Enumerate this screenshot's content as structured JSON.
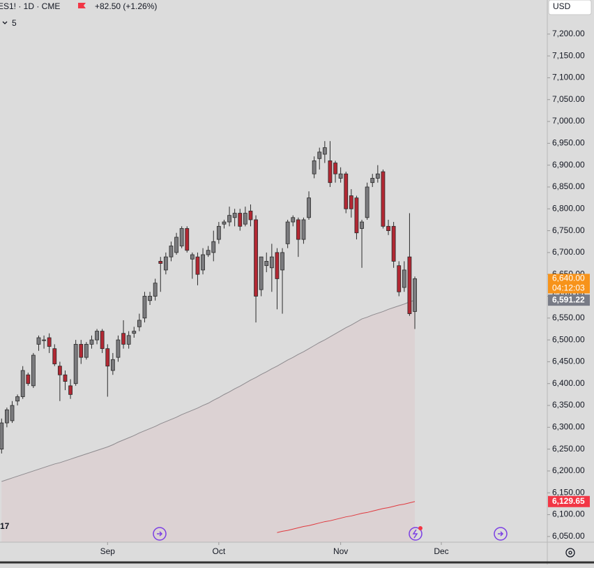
{
  "header": {
    "symbol": "ES1! · 1D · CME",
    "change": "+82.50 (+1.26%)",
    "indicator_count": "5",
    "currency": "USD"
  },
  "chart_data": {
    "type": "candlestick",
    "open": [
      6250,
      6310,
      6315,
      6360,
      6370,
      6420,
      6395,
      6490,
      6500,
      6505,
      6480,
      6440,
      6420,
      6395,
      6400,
      6490,
      6460,
      6490,
      6500,
      6520,
      6480,
      6430,
      6460,
      6515,
      6490,
      6515,
      6530,
      6550,
      6590,
      6600,
      6680,
      6660,
      6690,
      6700,
      6715,
      6755,
      6685,
      6690,
      6660,
      6695,
      6700,
      6730,
      6765,
      6770,
      6780,
      6790,
      6765,
      6795,
      6775,
      6615,
      6670,
      6665,
      6700,
      6660,
      6720,
      6770,
      6775,
      6730,
      6780,
      6880,
      6915,
      6925,
      6910,
      6905,
      6870,
      6880,
      6830,
      6825,
      6755,
      6780,
      6860,
      6870,
      6885,
      6760,
      6760,
      6670,
      6620,
      6690,
      6565
    ],
    "high": [
      6320,
      6345,
      6360,
      6375,
      6440,
      6425,
      6470,
      6510,
      6510,
      6515,
      6490,
      6450,
      6430,
      6410,
      6500,
      6500,
      6495,
      6510,
      6525,
      6525,
      6490,
      6470,
      6510,
      6545,
      6520,
      6530,
      6560,
      6610,
      6610,
      6640,
      6690,
      6700,
      6725,
      6745,
      6760,
      6760,
      6700,
      6700,
      6710,
      6715,
      6750,
      6770,
      6775,
      6805,
      6800,
      6800,
      6805,
      6810,
      6785,
      6690,
      6700,
      6720,
      6710,
      6710,
      6775,
      6785,
      6780,
      6780,
      6840,
      6920,
      6940,
      6955,
      6955,
      6910,
      6895,
      6885,
      6845,
      6830,
      6775,
      6860,
      6880,
      6900,
      6890,
      6775,
      6770,
      6680,
      6680,
      6790,
      6645
    ],
    "low": [
      6240,
      6300,
      6310,
      6350,
      6365,
      6395,
      6390,
      6475,
      6480,
      6470,
      6440,
      6360,
      6385,
      6365,
      6395,
      6445,
      6455,
      6480,
      6490,
      6470,
      6370,
      6420,
      6450,
      6480,
      6480,
      6505,
      6520,
      6540,
      6580,
      6590,
      6610,
      6650,
      6680,
      6695,
      6710,
      6700,
      6640,
      6625,
      6650,
      6690,
      6680,
      6720,
      6755,
      6760,
      6760,
      6750,
      6760,
      6760,
      6540,
      6600,
      6655,
      6610,
      6570,
      6560,
      6710,
      6760,
      6690,
      6720,
      6775,
      6870,
      6890,
      6905,
      6850,
      6860,
      6860,
      6790,
      6780,
      6730,
      6665,
      6775,
      6850,
      6860,
      6755,
      6740,
      6665,
      6600,
      6610,
      6555,
      6525
    ],
    "close": [
      6310,
      6340,
      6350,
      6370,
      6430,
      6400,
      6465,
      6505,
      6500,
      6485,
      6445,
      6420,
      6405,
      6375,
      6490,
      6460,
      6490,
      6500,
      6520,
      6480,
      6440,
      6455,
      6500,
      6490,
      6510,
      6520,
      6545,
      6600,
      6600,
      6630,
      6675,
      6690,
      6715,
      6735,
      6755,
      6705,
      6695,
      6650,
      6695,
      6705,
      6725,
      6760,
      6770,
      6785,
      6790,
      6760,
      6790,
      6775,
      6600,
      6690,
      6680,
      6690,
      6640,
      6700,
      6770,
      6780,
      6730,
      6775,
      6825,
      6910,
      6930,
      6940,
      6860,
      6880,
      6880,
      6800,
      6800,
      6745,
      6770,
      6850,
      6870,
      6880,
      6760,
      6750,
      6680,
      6610,
      6660,
      6560,
      6640
    ],
    "up_color": "#7b7b7e",
    "down_color": "#b22833",
    "lines": [
      {
        "color": "#8d8a8e",
        "fill": "#dcd2d3",
        "values": [
          6176,
          6180,
          6184,
          6188,
          6192,
          6196,
          6200,
          6204,
          6208,
          6212,
          6216,
          6219,
          6223,
          6227,
          6231,
          6235,
          6239,
          6243,
          6247,
          6251,
          6255,
          6260,
          6266,
          6271,
          6276,
          6281,
          6287,
          6292,
          6297,
          6302,
          6308,
          6313,
          6318,
          6323,
          6329,
          6334,
          6339,
          6344,
          6350,
          6355,
          6362,
          6368,
          6375,
          6381,
          6388,
          6394,
          6401,
          6408,
          6414,
          6421,
          6427,
          6434,
          6440,
          6447,
          6454,
          6460,
          6467,
          6473,
          6480,
          6487,
          6494,
          6500,
          6507,
          6514,
          6521,
          6528,
          6534,
          6541,
          6548,
          6552,
          6557,
          6561,
          6565,
          6570,
          6574,
          6578,
          6582,
          6587,
          6591
        ]
      },
      {
        "color": "#e0393e",
        "values": [
          null,
          null,
          null,
          null,
          null,
          null,
          null,
          null,
          null,
          null,
          null,
          null,
          null,
          null,
          null,
          null,
          null,
          null,
          null,
          null,
          null,
          null,
          null,
          null,
          null,
          null,
          null,
          null,
          null,
          null,
          null,
          null,
          null,
          null,
          null,
          null,
          null,
          null,
          null,
          null,
          null,
          null,
          null,
          null,
          null,
          null,
          null,
          null,
          null,
          null,
          null,
          null,
          6059,
          6062,
          6064,
          6067,
          6070,
          6073,
          6075,
          6078,
          6081,
          6084,
          6086,
          6089,
          6092,
          6095,
          6097,
          6100,
          6103,
          6105,
          6108,
          6111,
          6114,
          6116,
          6119,
          6122,
          6124,
          6127,
          6130
        ]
      }
    ],
    "last_labels": {
      "close": "6,640.00",
      "countdown": "04:12:03",
      "line0": "6,591.22",
      "line1": "6,129.65"
    },
    "xlim": [
      -0.3,
      103
    ],
    "xticks": [
      {
        "value": 20,
        "label": "Sep"
      },
      {
        "value": 41,
        "label": "Oct"
      },
      {
        "value": 64,
        "label": "Nov"
      },
      {
        "value": 83,
        "label": "Dec"
      }
    ],
    "ylim": [
      6037,
      7278
    ],
    "yticks": [
      {
        "value": 7200,
        "label": "7,200.00"
      },
      {
        "value": 7150,
        "label": "7,150.00"
      },
      {
        "value": 7100,
        "label": "7,100.00"
      },
      {
        "value": 7050,
        "label": "7,050.00"
      },
      {
        "value": 7000,
        "label": "7,000.00"
      },
      {
        "value": 6950,
        "label": "6,950.00"
      },
      {
        "value": 6900,
        "label": "6,900.00"
      },
      {
        "value": 6850,
        "label": "6,850.00"
      },
      {
        "value": 6800,
        "label": "6,800.00"
      },
      {
        "value": 6750,
        "label": "6,750.00"
      },
      {
        "value": 6700,
        "label": "6,700.00"
      },
      {
        "value": 6650,
        "label": "6,650.00"
      },
      {
        "value": 6600,
        "label": "6,600.00"
      },
      {
        "value": 6550,
        "label": "6,550.00"
      },
      {
        "value": 6500,
        "label": "6,500.00"
      },
      {
        "value": 6450,
        "label": "6,450.00"
      },
      {
        "value": 6400,
        "label": "6,400.00"
      },
      {
        "value": 6350,
        "label": "6,350.00"
      },
      {
        "value": 6300,
        "label": "6,300.00"
      },
      {
        "value": 6250,
        "label": "6,250.00"
      },
      {
        "value": 6200,
        "label": "6,200.00"
      },
      {
        "value": 6150,
        "label": "6,150.00"
      },
      {
        "value": 6100,
        "label": "6,100.00"
      },
      {
        "value": 6050,
        "label": "6,050.00"
      }
    ]
  }
}
